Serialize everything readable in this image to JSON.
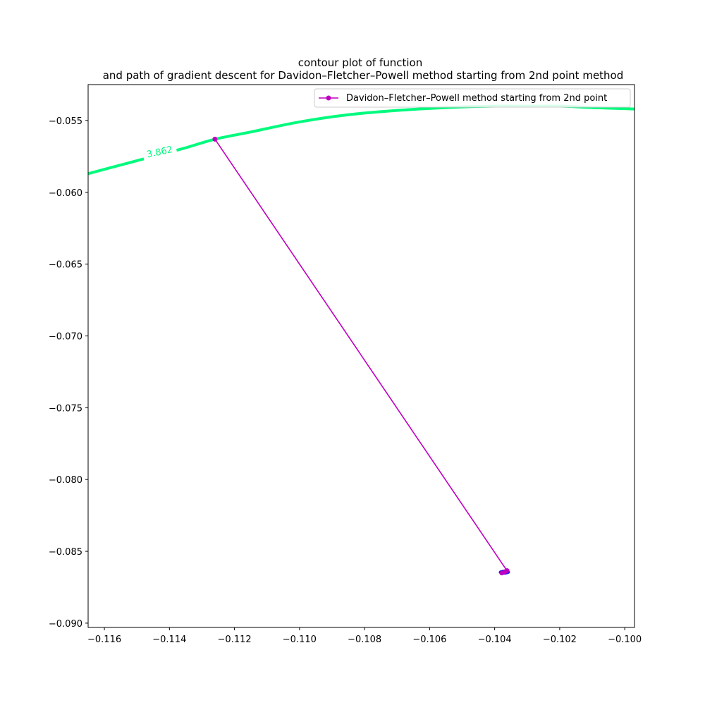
{
  "chart_data": {
    "type": "line",
    "title": "contour plot of function\nand path of gradient descent for Davidon–Fletcher–Powell method starting from 2nd point method",
    "title_lines": [
      "contour plot of function",
      "and path of gradient descent for Davidon–Fletcher–Powell method starting from 2nd point method"
    ],
    "xlabel": "",
    "ylabel": "",
    "xlim": [
      -0.1165,
      -0.0997
    ],
    "ylim": [
      -0.0903,
      -0.0525
    ],
    "grid": false,
    "legend_position": "top-right",
    "xticks": [
      -0.116,
      -0.114,
      -0.112,
      -0.11,
      -0.108,
      -0.106,
      -0.104,
      -0.102,
      -0.1
    ],
    "xtick_labels": [
      "−0.116",
      "−0.114",
      "−0.112",
      "−0.110",
      "−0.108",
      "−0.106",
      "−0.104",
      "−0.102",
      "−0.100"
    ],
    "yticks": [
      -0.055,
      -0.06,
      -0.065,
      -0.07,
      -0.075,
      -0.08,
      -0.085,
      -0.09
    ],
    "ytick_labels": [
      "−0.055",
      "−0.060",
      "−0.065",
      "−0.070",
      "−0.075",
      "−0.080",
      "−0.085",
      "−0.090"
    ],
    "contour": {
      "level_label": "3.862",
      "color": "#00fa7d",
      "label_x": -0.1143,
      "label_y": -0.0572,
      "x": [
        -0.1165,
        -0.1155,
        -0.1145,
        -0.1135,
        -0.1126,
        -0.1115,
        -0.11,
        -0.1085,
        -0.107,
        -0.1055,
        -0.104,
        -0.103,
        -0.102,
        -0.101,
        -0.0997
      ],
      "y": [
        -0.0587,
        -0.0581,
        -0.0575,
        -0.0569,
        -0.0563,
        -0.0558,
        -0.0551,
        -0.0546,
        -0.0543,
        -0.0541,
        -0.054,
        -0.054,
        -0.054,
        -0.0541,
        -0.0542
      ]
    },
    "series": [
      {
        "name": "Davidon–Fletcher–Powell method starting from 2nd point",
        "color": "#bf00bf",
        "x": [
          -0.1126,
          -0.10362,
          -0.10378,
          -0.1037,
          -0.10364,
          -0.10368
        ],
        "y": [
          -0.0563,
          -0.08635,
          -0.0865,
          -0.08645,
          -0.0864,
          -0.08642
        ]
      }
    ],
    "minimum_marker": {
      "color": "#0000ff",
      "x": -0.1037,
      "y": -0.08645
    }
  }
}
